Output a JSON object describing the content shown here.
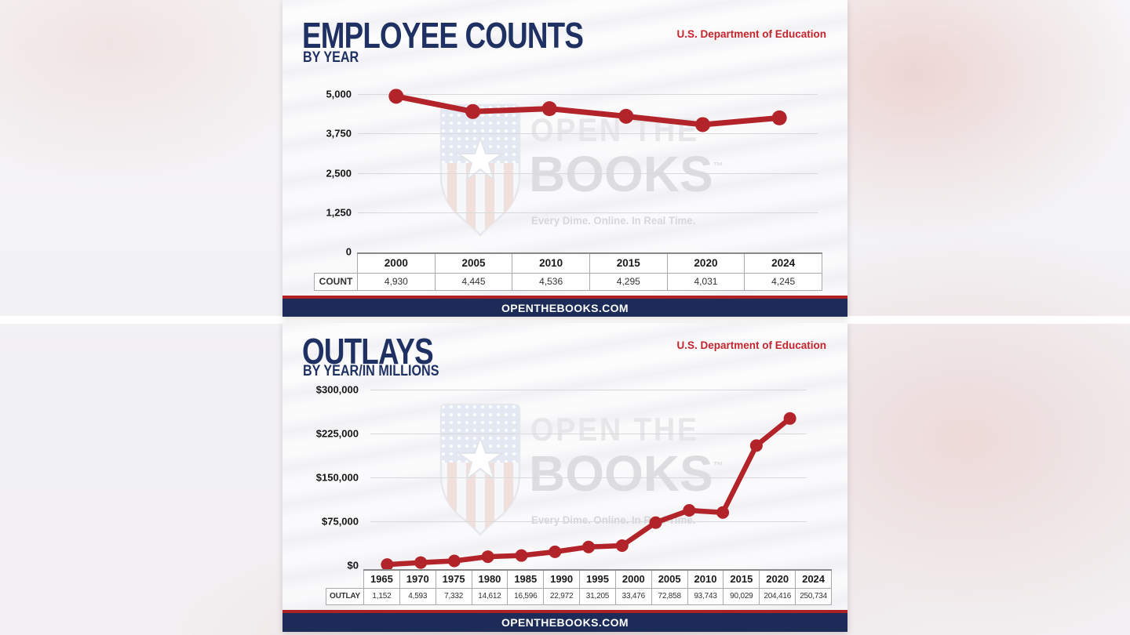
{
  "page": {
    "site_footer": "OPENTHEBOOKS.COM"
  },
  "watermark": {
    "line1": "OPEN THE",
    "line2": "BOOKS",
    "tm": "™",
    "tagline": "Every Dime. Online. In Real Time."
  },
  "colors": {
    "navy": "#1f3163",
    "line_red": "#b22429",
    "source_red": "#c4242b",
    "footer_navy": "#1c2b58",
    "footer_stripe_red": "#ae2227",
    "gridline": "#d9d9dc"
  },
  "chart_data": [
    {
      "type": "line",
      "title": "EMPLOYEE COUNTS",
      "subtitle": "BY YEAR",
      "source_label": "U.S. Department of Education",
      "row_label": "COUNT",
      "categories": [
        "2000",
        "2005",
        "2010",
        "2015",
        "2020",
        "2024"
      ],
      "values": [
        4930,
        4445,
        4536,
        4295,
        4031,
        4245
      ],
      "value_labels": [
        "4,930",
        "4,445",
        "4,536",
        "4,295",
        "4,031",
        "4,245"
      ],
      "ylim": [
        0,
        5000
      ],
      "y_ticks": [
        {
          "value": 5000,
          "label": "5,000"
        },
        {
          "value": 3750,
          "label": "3,750"
        },
        {
          "value": 2500,
          "label": "2,500"
        },
        {
          "value": 1250,
          "label": "1,250"
        },
        {
          "value": 0,
          "label": "0"
        }
      ],
      "line_color": "#b22429",
      "grid": true,
      "legend_position": "none"
    },
    {
      "type": "line",
      "title": "OUTLAYS",
      "subtitle": "BY YEAR/IN MILLIONS",
      "source_label": "U.S. Department of Education",
      "row_label": "OUTLAY",
      "categories": [
        "1965",
        "1970",
        "1975",
        "1980",
        "1985",
        "1990",
        "1995",
        "2000",
        "2005",
        "2010",
        "2015",
        "2020",
        "2024"
      ],
      "values": [
        1152,
        4593,
        7332,
        14612,
        16596,
        22972,
        31205,
        33476,
        72858,
        93743,
        90029,
        204416,
        250734
      ],
      "value_labels": [
        "1,152",
        "4,593",
        "7,332",
        "14,612",
        "16,596",
        "22,972",
        "31,205",
        "33,476",
        "72,858",
        "93,743",
        "90,029",
        "204,416",
        "250,734"
      ],
      "ylim": [
        0,
        300000
      ],
      "y_ticks": [
        {
          "value": 300000,
          "label": "$300,000"
        },
        {
          "value": 225000,
          "label": "$225,000"
        },
        {
          "value": 150000,
          "label": "$150,000"
        },
        {
          "value": 75000,
          "label": "$75,000"
        },
        {
          "value": 0,
          "label": "$0"
        }
      ],
      "line_color": "#b22429",
      "grid": true,
      "legend_position": "none"
    }
  ]
}
